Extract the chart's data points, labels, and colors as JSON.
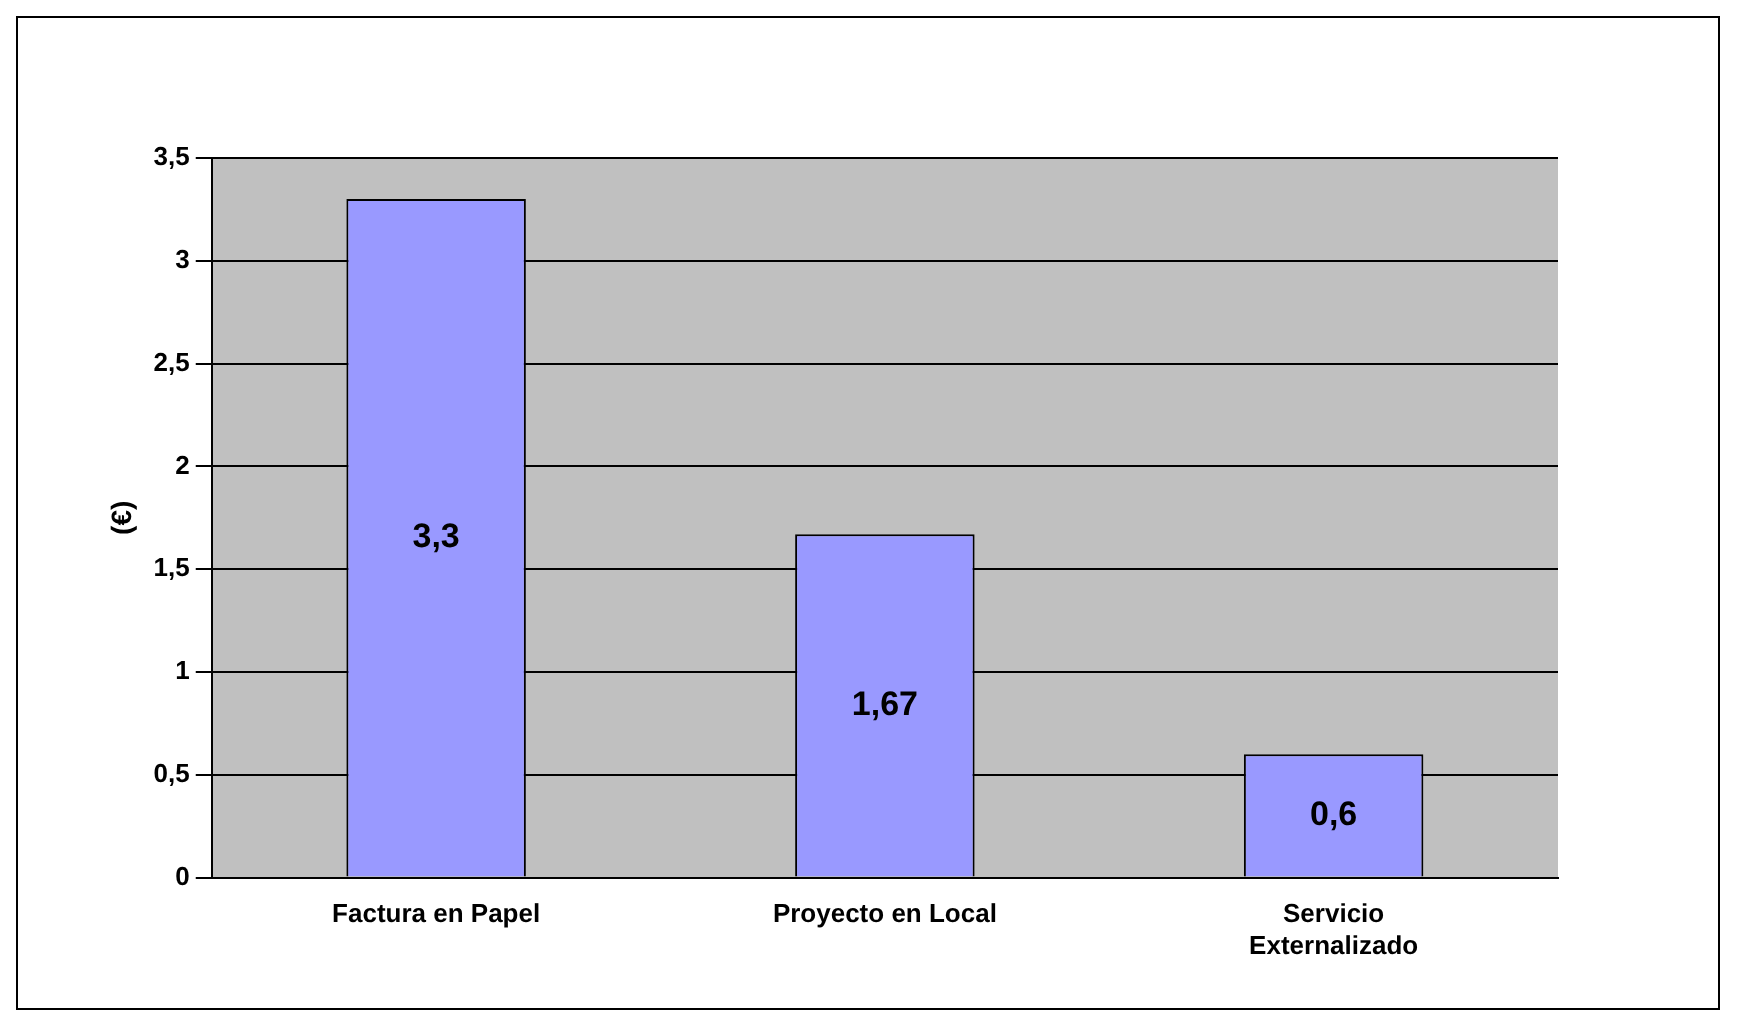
{
  "chart_data": {
    "type": "bar",
    "ylabel": "(€)",
    "categories": [
      "Factura en Papel",
      "Proyecto en Local",
      "Servicio Externalizado"
    ],
    "values": [
      3.3,
      1.67,
      0.6
    ],
    "color": "#9999ff",
    "value_labels": [
      "3,3",
      "1,67",
      "0,6"
    ],
    "ylim": [
      0,
      3.5
    ],
    "yticks": [
      0,
      {
        "value": 0.5,
        "label": "0,5"
      },
      1,
      {
        "value": 1.5,
        "label": "1,5"
      },
      2,
      {
        "value": 2.5,
        "label": "2,5"
      },
      3,
      {
        "value": 3.5,
        "label": "3,5"
      }
    ],
    "grid": "y",
    "legend": false
  }
}
